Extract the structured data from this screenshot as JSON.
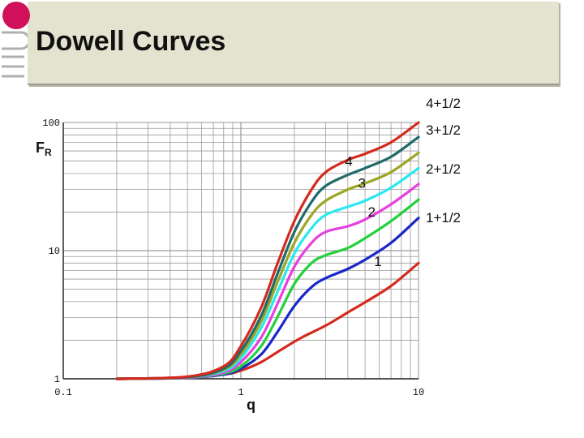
{
  "slide": {
    "title": "Dowell Curves",
    "logo_icon": "university-logo-icon"
  },
  "colors": {
    "banner": "#e3e3cf",
    "grid": "#9a9a9a",
    "logo": "#d0105a"
  },
  "chart_data": {
    "type": "line",
    "title": "Dowell Curves",
    "xlabel": "q",
    "ylabel": "FR",
    "ylabel_main": "F",
    "ylabel_sub": "R",
    "xscale": "log",
    "yscale": "log",
    "xlim": [
      0.1,
      10
    ],
    "ylim": [
      1,
      100
    ],
    "grid": true,
    "x_ticks": [
      "0.1",
      "1",
      "10"
    ],
    "y_ticks": [
      "1",
      "10",
      "100"
    ],
    "x_tick_values": [
      0.1,
      1,
      10
    ],
    "y_tick_values": [
      1,
      10,
      100
    ],
    "series": [
      {
        "name": "1",
        "color": "#d42a1e",
        "label": "1",
        "values": [
          [
            0.2,
            1.0
          ],
          [
            0.5,
            1.02
          ],
          [
            0.8,
            1.08
          ],
          [
            1.0,
            1.16
          ],
          [
            1.3,
            1.35
          ],
          [
            1.7,
            1.7
          ],
          [
            2.2,
            2.1
          ],
          [
            3.0,
            2.6
          ],
          [
            4.0,
            3.3
          ],
          [
            5.0,
            3.95
          ],
          [
            7.0,
            5.3
          ],
          [
            10.0,
            8.0
          ]
        ]
      },
      {
        "name": "1+1/2",
        "color": "#1a28c8",
        "label": "1+1/2",
        "values": [
          [
            0.2,
            1.0
          ],
          [
            0.5,
            1.02
          ],
          [
            0.8,
            1.08
          ],
          [
            1.0,
            1.2
          ],
          [
            1.3,
            1.55
          ],
          [
            1.6,
            2.3
          ],
          [
            2.0,
            3.7
          ],
          [
            2.5,
            5.2
          ],
          [
            3.0,
            6.1
          ],
          [
            4.0,
            7.2
          ],
          [
            5.0,
            8.5
          ],
          [
            7.0,
            11.5
          ],
          [
            10.0,
            18.0
          ]
        ]
      },
      {
        "name": "2",
        "color": "#22d03a",
        "label": "2",
        "values": [
          [
            0.2,
            1.0
          ],
          [
            0.5,
            1.02
          ],
          [
            0.8,
            1.1
          ],
          [
            1.0,
            1.25
          ],
          [
            1.3,
            1.8
          ],
          [
            1.6,
            3.0
          ],
          [
            2.0,
            5.5
          ],
          [
            2.5,
            8.0
          ],
          [
            3.0,
            9.2
          ],
          [
            4.0,
            10.5
          ],
          [
            5.0,
            12.5
          ],
          [
            7.0,
            17.0
          ],
          [
            10.0,
            25.0
          ]
        ]
      },
      {
        "name": "2+1/2",
        "color": "#e640e0",
        "label": "2+1/2",
        "values": [
          [
            0.2,
            1.0
          ],
          [
            0.5,
            1.02
          ],
          [
            0.8,
            1.12
          ],
          [
            1.0,
            1.35
          ],
          [
            1.3,
            2.1
          ],
          [
            1.6,
            3.8
          ],
          [
            2.0,
            7.5
          ],
          [
            2.5,
            11.5
          ],
          [
            3.0,
            14.0
          ],
          [
            4.0,
            15.5
          ],
          [
            5.0,
            17.5
          ],
          [
            7.0,
            23.0
          ],
          [
            10.0,
            33.0
          ]
        ]
      },
      {
        "name": "3",
        "color": "#28e8f0",
        "label": "3",
        "values": [
          [
            0.2,
            1.0
          ],
          [
            0.5,
            1.03
          ],
          [
            0.8,
            1.15
          ],
          [
            1.0,
            1.45
          ],
          [
            1.3,
            2.5
          ],
          [
            1.6,
            4.7
          ],
          [
            2.0,
            9.5
          ],
          [
            2.5,
            15.0
          ],
          [
            3.0,
            19.0
          ],
          [
            4.0,
            22.0
          ],
          [
            5.0,
            24.5
          ],
          [
            7.0,
            31.0
          ],
          [
            10.0,
            44.0
          ]
        ]
      },
      {
        "name": "3+1/2",
        "color": "#9ca626",
        "label": "3+1/2",
        "values": [
          [
            0.2,
            1.0
          ],
          [
            0.5,
            1.03
          ],
          [
            0.8,
            1.18
          ],
          [
            1.0,
            1.55
          ],
          [
            1.3,
            2.8
          ],
          [
            1.6,
            5.6
          ],
          [
            2.0,
            11.5
          ],
          [
            2.5,
            19.0
          ],
          [
            3.0,
            24.5
          ],
          [
            4.0,
            30.0
          ],
          [
            5.0,
            33.5
          ],
          [
            7.0,
            41.0
          ],
          [
            10.0,
            58.0
          ]
        ]
      },
      {
        "name": "4",
        "color": "#1f6a6a",
        "label": "4",
        "values": [
          [
            0.2,
            1.0
          ],
          [
            0.5,
            1.03
          ],
          [
            0.8,
            1.2
          ],
          [
            1.0,
            1.65
          ],
          [
            1.3,
            3.1
          ],
          [
            1.6,
            6.5
          ],
          [
            2.0,
            14.0
          ],
          [
            2.5,
            24.0
          ],
          [
            3.0,
            32.0
          ],
          [
            4.0,
            39.0
          ],
          [
            5.0,
            44.0
          ],
          [
            7.0,
            54.0
          ],
          [
            10.0,
            77.0
          ]
        ]
      },
      {
        "name": "4+1/2",
        "color": "#d42a1e",
        "label": "4+1/2",
        "values": [
          [
            0.2,
            1.0
          ],
          [
            0.5,
            1.04
          ],
          [
            0.8,
            1.25
          ],
          [
            1.0,
            1.8
          ],
          [
            1.3,
            3.6
          ],
          [
            1.6,
            7.8
          ],
          [
            2.0,
            17.0
          ],
          [
            2.5,
            30.0
          ],
          [
            3.0,
            41.0
          ],
          [
            4.0,
            51.0
          ],
          [
            5.0,
            57.0
          ],
          [
            7.0,
            70.0
          ],
          [
            10.0,
            100.0
          ]
        ]
      }
    ],
    "inline_labels": [
      {
        "text": "4",
        "x": 4.05,
        "y": 46
      },
      {
        "text": "3",
        "x": 4.8,
        "y": 31
      },
      {
        "text": "2",
        "x": 5.45,
        "y": 18.5
      },
      {
        "text": "1",
        "x": 5.9,
        "y": 7.6
      }
    ]
  }
}
